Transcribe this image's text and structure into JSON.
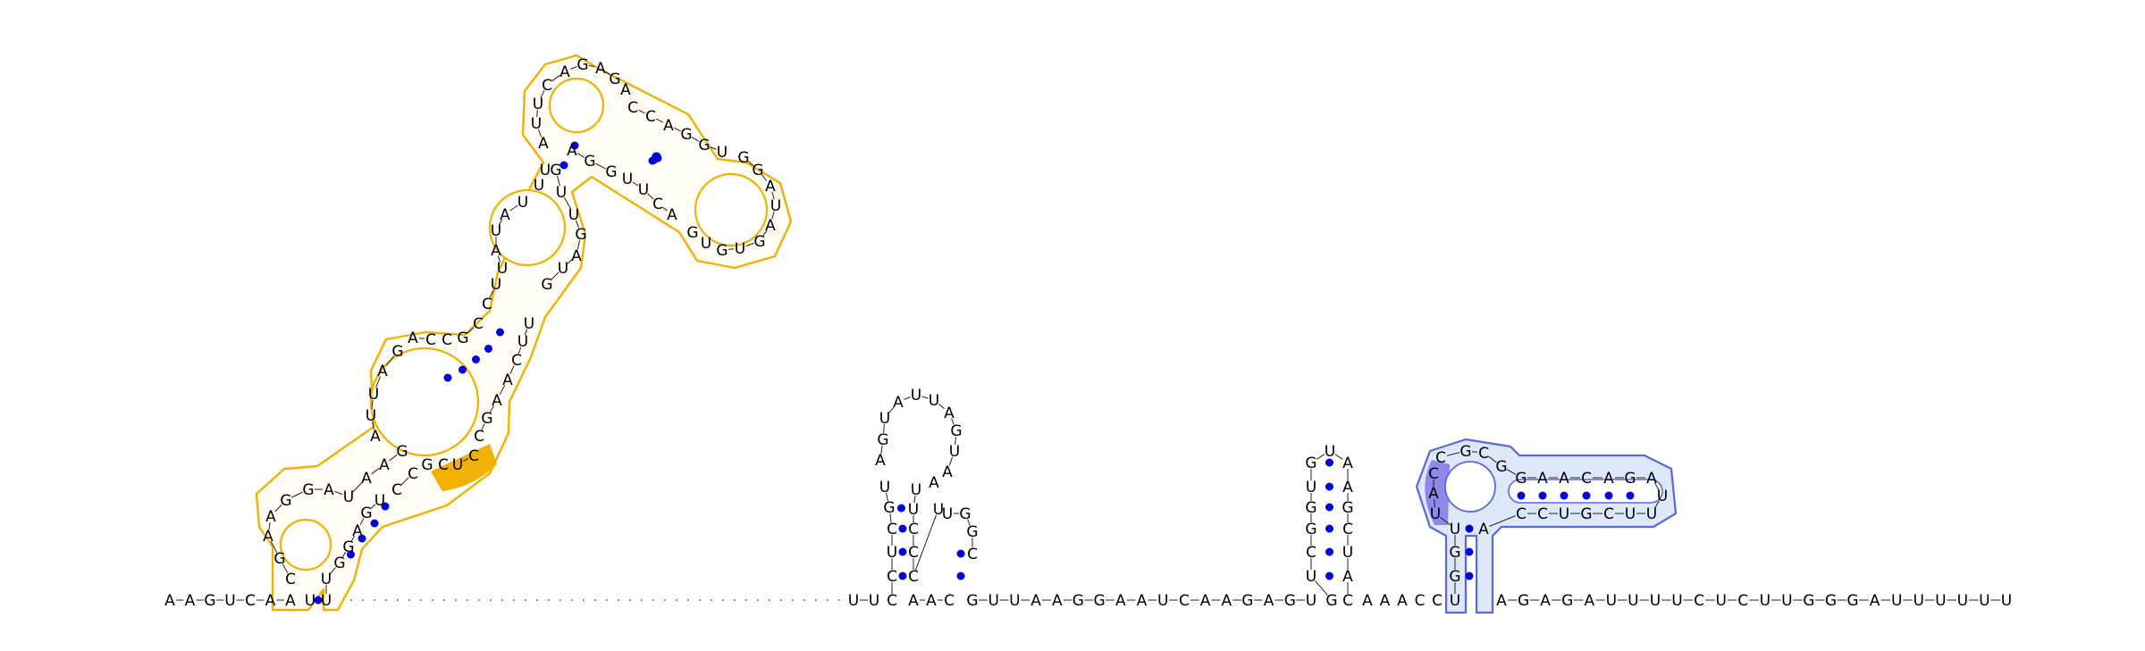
{
  "diagram": {
    "title": "",
    "colors": {
      "domain_outline": "#f2b100",
      "domain_fill": "#fffdf6",
      "domain_highlight": "#f2b100",
      "blue_outline": "#5a68e0",
      "blue_fill": "#dde8fb",
      "blue_highlight": "#8e88ea",
      "base_pair": "#0000dd",
      "text": "#000000"
    },
    "segments": [
      {
        "id": "lead",
        "bases": [
          "A",
          "A",
          "G",
          "U",
          "C",
          "A",
          "A"
        ]
      },
      {
        "id": "helix1_5p",
        "bases": [
          "U"
        ]
      },
      {
        "id": "hairpin1_loop",
        "bases": [
          "C",
          "G",
          "A",
          "A",
          "G",
          "G",
          "A",
          "U",
          "A",
          "A",
          "G"
        ]
      },
      {
        "id": "helix1_3p",
        "bases": [
          "U",
          "U",
          "G",
          "G",
          "A",
          "G",
          "U"
        ]
      },
      {
        "id": "internal1",
        "bases": [
          "C",
          "C",
          "G",
          "C",
          "U",
          "C"
        ]
      },
      {
        "id": "helix2_3p",
        "bases": [
          "C",
          "G",
          "A",
          "A",
          "C",
          "U",
          "U"
        ]
      },
      {
        "id": "internal2_5p",
        "bases": [
          "A",
          "U",
          "U",
          "A",
          "G"
        ]
      },
      {
        "id": "helix2_5p",
        "bases": [
          "A",
          "C",
          "C",
          "G",
          "C"
        ]
      },
      {
        "id": "internal3_5p",
        "bases": [
          "C",
          "U",
          "U",
          "A",
          "U",
          "A",
          "U"
        ]
      },
      {
        "id": "helix3_5p",
        "bases": [
          "U",
          "U"
        ]
      },
      {
        "id": "loop_apex",
        "bases": [
          "A",
          "U",
          "U",
          "C",
          "A",
          "G",
          "A",
          "G",
          "A"
        ]
      },
      {
        "id": "helix4_5p",
        "bases": [
          "C",
          "C",
          "A",
          "G",
          "G",
          "U"
        ]
      },
      {
        "id": "hairpin4_loop",
        "bases": [
          "G",
          "G",
          "A",
          "U",
          "A",
          "G",
          "U",
          "G",
          "U",
          "G"
        ]
      },
      {
        "id": "helix4_3p",
        "bases": [
          "A",
          "C",
          "U",
          "U",
          "G",
          "G",
          "A"
        ]
      },
      {
        "id": "internal4",
        "bases": [
          "G",
          "U",
          "U",
          "G",
          "A",
          "U",
          "G"
        ]
      },
      {
        "id": "linker",
        "bases": [
          "U",
          "U"
        ]
      },
      {
        "id": "stemA_5p",
        "bases": [
          "C",
          "C",
          "U",
          "C",
          "G",
          "U"
        ]
      },
      {
        "id": "stemA_loop",
        "bases": [
          "A",
          "G",
          "U",
          "A",
          "U",
          "U",
          "A",
          "G",
          "U",
          "A",
          "A"
        ]
      },
      {
        "id": "stemB",
        "bases": [
          "U",
          "U",
          "C",
          "C",
          "C",
          "U",
          "U",
          "G",
          "G",
          "C"
        ]
      },
      {
        "id": "spacer1",
        "bases": [
          "A",
          "A",
          "C"
        ]
      },
      {
        "id": "spacer2",
        "bases": [
          "G",
          "U",
          "U",
          "A",
          "A",
          "G",
          "G",
          "A",
          "A",
          "U",
          "C",
          "A",
          "A",
          "G",
          "A",
          "G",
          "U"
        ]
      },
      {
        "id": "hairpinC",
        "bases": [
          "G",
          "U",
          "C",
          "G",
          "G",
          "U",
          "G",
          "U",
          "A",
          "A",
          "G",
          "C",
          "U",
          "A",
          "C"
        ]
      },
      {
        "id": "spacer3",
        "bases": [
          "A",
          "A",
          "A",
          "C",
          "C"
        ]
      },
      {
        "id": "stemD",
        "bases": [
          "U",
          "G",
          "G",
          "U",
          "U",
          "A",
          "C",
          "C",
          "G",
          "C",
          "G",
          "G",
          "A",
          "A",
          "C",
          "A",
          "G",
          "A",
          "U",
          "U",
          "U",
          "C",
          "G",
          "U",
          "C",
          "C",
          "A"
        ]
      },
      {
        "id": "tail",
        "bases": [
          "A",
          "G",
          "A",
          "G",
          "A",
          "U",
          "U",
          "U",
          "U",
          "C",
          "U",
          "C",
          "U",
          "U",
          "G",
          "G",
          "G",
          "A",
          "U",
          "U",
          "U",
          "U",
          "U",
          "U"
        ]
      }
    ]
  }
}
